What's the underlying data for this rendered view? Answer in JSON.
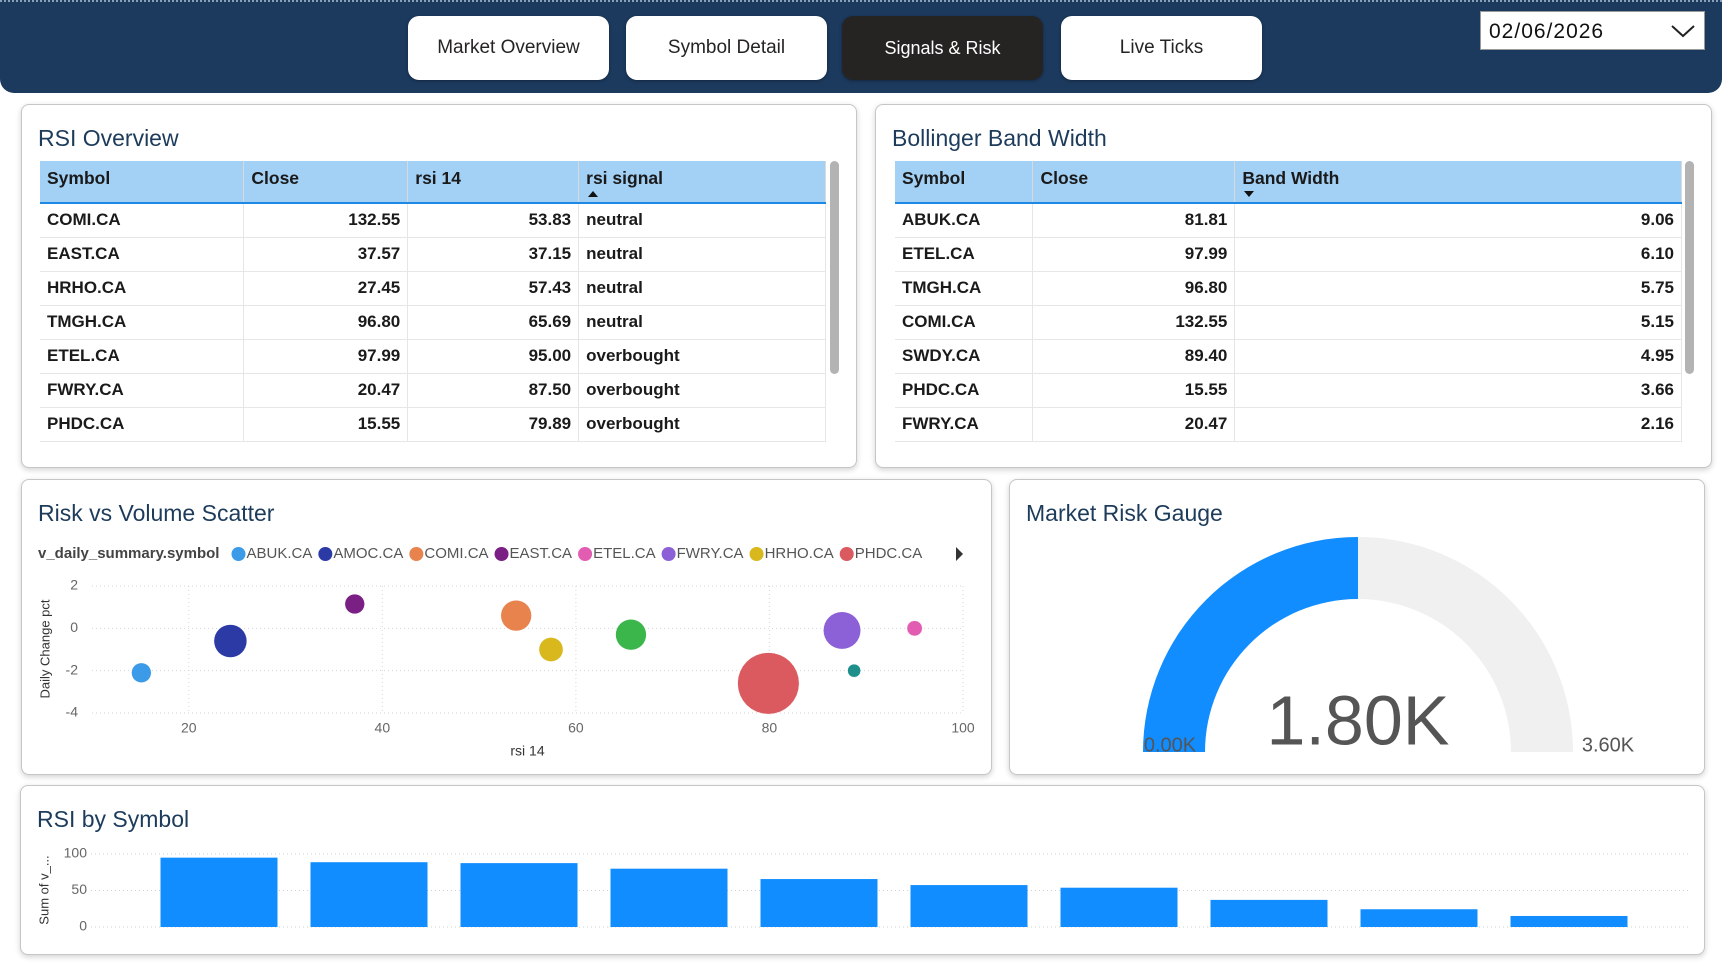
{
  "tabs": [
    "Market Overview",
    "Symbol Detail",
    "Signals & Risk",
    "Live Ticks"
  ],
  "active_tab": 2,
  "date": "02/06/2026",
  "tables": [
    {
      "title": "RSI Overview",
      "columns": [
        "Symbol",
        "Close",
        "rsi 14",
        "rsi signal"
      ],
      "sort": {
        "column": 3,
        "direction": "asc"
      },
      "rows": [
        [
          "COMI.CA",
          "132.55",
          "53.83",
          "neutral"
        ],
        [
          "EAST.CA",
          "37.57",
          "37.15",
          "neutral"
        ],
        [
          "HRHO.CA",
          "27.45",
          "57.43",
          "neutral"
        ],
        [
          "TMGH.CA",
          "96.80",
          "65.69",
          "neutral"
        ],
        [
          "ETEL.CA",
          "97.99",
          "95.00",
          "overbought"
        ],
        [
          "FWRY.CA",
          "20.47",
          "87.50",
          "overbought"
        ],
        [
          "PHDC.CA",
          "15.55",
          "79.89",
          "overbought"
        ]
      ]
    },
    {
      "title": "Bollinger Band Width",
      "columns": [
        "Symbol",
        "Close",
        "Band Width"
      ],
      "sort": {
        "column": 2,
        "direction": "desc"
      },
      "rows": [
        [
          "ABUK.CA",
          "81.81",
          "9.06"
        ],
        [
          "ETEL.CA",
          "97.99",
          "6.10"
        ],
        [
          "TMGH.CA",
          "96.80",
          "5.75"
        ],
        [
          "COMI.CA",
          "132.55",
          "5.15"
        ],
        [
          "SWDY.CA",
          "89.40",
          "4.95"
        ],
        [
          "PHDC.CA",
          "15.55",
          "3.66"
        ],
        [
          "FWRY.CA",
          "20.47",
          "2.16"
        ]
      ]
    }
  ],
  "chart_data": [
    {
      "type": "scatter",
      "title": "Risk vs Volume Scatter",
      "legend_title": "v_daily_summary.symbol",
      "xlabel": "rsi 14",
      "ylabel": "Daily Change pct",
      "xlim": [
        10,
        100
      ],
      "ylim": [
        -4,
        2
      ],
      "xticks": [
        20,
        40,
        60,
        80,
        100
      ],
      "yticks": [
        -4,
        -2,
        0,
        2
      ],
      "grid": true,
      "series": [
        {
          "name": "ABUK.CA",
          "color": "#3b9be8",
          "x": [
            15.1
          ],
          "values": [
            -2.1
          ],
          "sizes": [
            9
          ]
        },
        {
          "name": "AMOC.CA",
          "color": "#2c3aa6",
          "x": [
            24.3
          ],
          "values": [
            -0.6
          ],
          "sizes": [
            15
          ]
        },
        {
          "name": "COMI.CA",
          "color": "#e8834d",
          "x": [
            53.83
          ],
          "values": [
            0.6
          ],
          "sizes": [
            14
          ]
        },
        {
          "name": "EAST.CA",
          "color": "#7a1f83",
          "x": [
            37.15
          ],
          "values": [
            1.15
          ],
          "sizes": [
            9
          ]
        },
        {
          "name": "ETEL.CA",
          "color": "#e25cb2",
          "x": [
            95.0
          ],
          "values": [
            0.0
          ],
          "sizes": [
            7
          ]
        },
        {
          "name": "FWRY.CA",
          "color": "#8c60d6",
          "x": [
            87.5
          ],
          "values": [
            -0.1
          ],
          "sizes": [
            17
          ]
        },
        {
          "name": "HRHO.CA",
          "color": "#d8b81c",
          "x": [
            57.43
          ],
          "values": [
            -1.0
          ],
          "sizes": [
            11
          ]
        },
        {
          "name": "PHDC.CA",
          "color": "#da5a60",
          "x": [
            79.89
          ],
          "values": [
            -2.6
          ],
          "sizes": [
            28
          ]
        },
        {
          "name": null,
          "color": "#3bb64b",
          "x": [
            65.69
          ],
          "values": [
            -0.3
          ],
          "sizes": [
            14
          ]
        },
        {
          "name": null,
          "color": "#1f8f8c",
          "x": [
            88.75
          ],
          "values": [
            -2.0
          ],
          "sizes": [
            6
          ]
        }
      ]
    },
    {
      "type": "gauge",
      "title": "Market Risk Gauge",
      "value": {
        "value": 1800,
        "label": "1.80K"
      },
      "min": {
        "value": 0,
        "label": "0.00K"
      },
      "max": {
        "value": 3600,
        "label": "3.60K"
      },
      "color": "#118dff",
      "track_color": "#f0f0f0"
    },
    {
      "type": "bar",
      "title": "RSI by Symbol",
      "ylabel": "Sum of v_...",
      "categories": [
        null,
        null,
        null,
        null,
        null,
        null,
        null,
        null,
        null,
        null
      ],
      "values": [
        95.0,
        88.75,
        87.5,
        79.89,
        65.69,
        57.43,
        53.83,
        37.15,
        24.3,
        15.1
      ],
      "ylim": [
        0,
        105
      ],
      "yticks": [
        0,
        50,
        100
      ],
      "color": "#118dff",
      "grid": true
    }
  ]
}
